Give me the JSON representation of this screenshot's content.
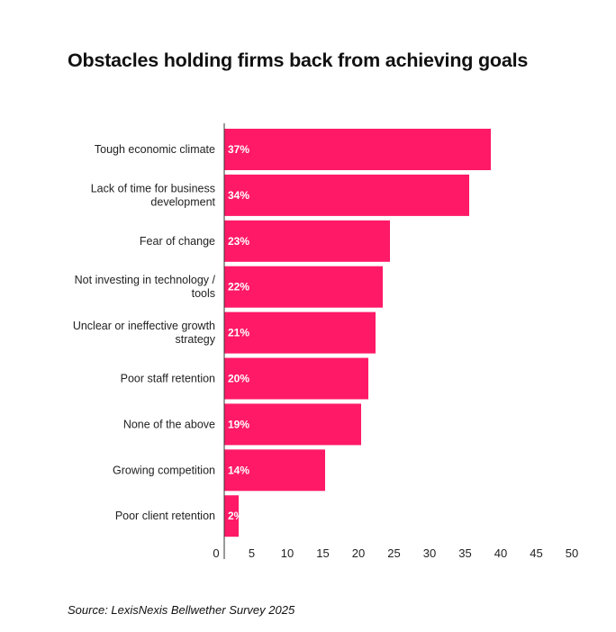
{
  "chart_data": {
    "type": "bar",
    "orientation": "horizontal",
    "title": "Obstacles holding firms back from achieving goals",
    "categories": [
      [
        "Tough economic climate"
      ],
      [
        "Lack of time for business",
        "development"
      ],
      [
        "Fear of change"
      ],
      [
        "Not investing in technology /",
        "tools"
      ],
      [
        "Unclear or ineffective growth",
        "strategy"
      ],
      [
        "Poor staff retention"
      ],
      [
        "None of the above"
      ],
      [
        "Growing competition"
      ],
      [
        "Poor client retention"
      ]
    ],
    "values": [
      37,
      34,
      23,
      22,
      21,
      20,
      19,
      14,
      2
    ],
    "data_labels": [
      "37%",
      "34%",
      "23%",
      "22%",
      "21%",
      "20%",
      "19%",
      "14%",
      "2%"
    ],
    "xlim": [
      0,
      50
    ],
    "xticks": [
      "0",
      "5",
      "10",
      "15",
      "20",
      "25",
      "30",
      "35",
      "40",
      "45",
      "50"
    ],
    "xlabel": "",
    "ylabel": "",
    "grid": false,
    "bar_color": "#ff1966"
  },
  "source": "Source: LexisNexis Bellwether Survey 2025"
}
